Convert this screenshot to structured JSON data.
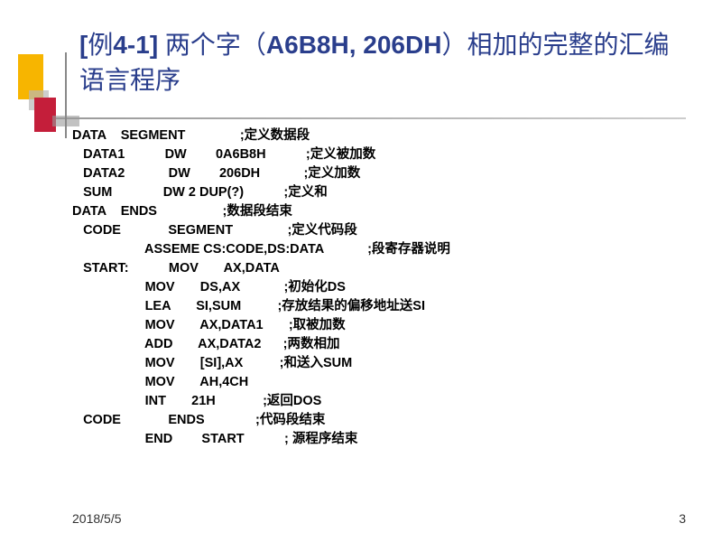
{
  "title": {
    "bracket_open": "[",
    "example_prefix": "例",
    "example_num": "4-1",
    "bracket_close": "]",
    "text_part1": " 两个字（",
    "hex_values": "A6B8H, 206DH",
    "text_part2": "）相加的完整的汇编语言程序"
  },
  "code": {
    "lines": [
      "DATA    SEGMENT               ;定义数据段",
      "   DATA1           DW        0A6B8H           ;定义被加数",
      "   DATA2            DW        206DH            ;定义加数",
      "   SUM              DW 2 DUP(?)           ;定义和",
      "DATA    ENDS                  ;数据段结束",
      "   CODE             SEGMENT               ;定义代码段",
      "                    ASSEME CS:CODE,DS:DATA            ;段寄存器说明",
      "   START:           MOV       AX,DATA",
      "                    MOV       DS,AX            ;初始化DS",
      "                    LEA       SI,SUM          ;存放结果的偏移地址送SI",
      "                    MOV       AX,DATA1       ;取被加数",
      "                    ADD       AX,DATA2      ;两数相加",
      "                    MOV       [SI],AX          ;和送入SUM",
      "                    MOV       AH,4CH",
      "                    INT       21H             ;返回DOS",
      "   CODE             ENDS              ;代码段结束",
      "                    END        START           ; 源程序结束"
    ]
  },
  "footer": {
    "date": "2018/5/5",
    "page": "3"
  },
  "colors": {
    "title_color": "#2a3e8c",
    "accent_yellow": "#f7b500",
    "accent_red": "#c41e3a",
    "text_black": "#000000",
    "background": "#ffffff"
  }
}
